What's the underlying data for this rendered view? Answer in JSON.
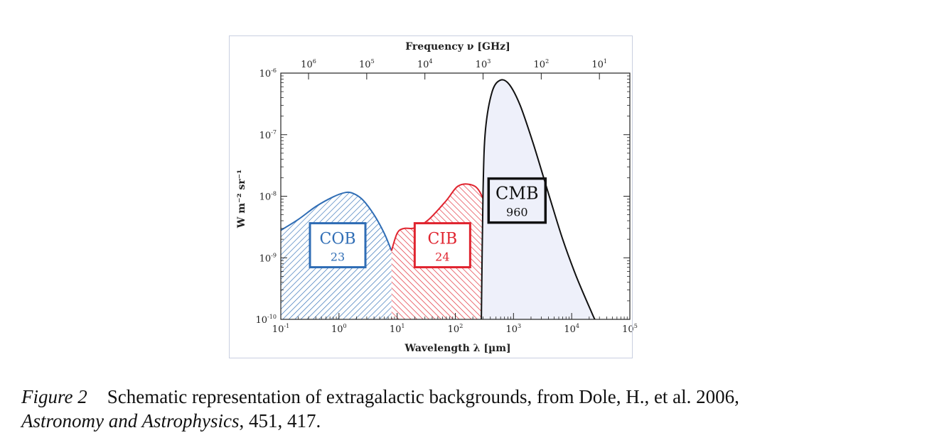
{
  "chart_data": {
    "type": "area",
    "top_axis_label": "Frequency ν [GHz]",
    "xlabel": "Wavelength λ [µm]",
    "ylabel": "W m⁻² sr⁻¹",
    "x_scale": "log",
    "y_scale": "log",
    "xlim": [
      0.1,
      100000
    ],
    "ylim": [
      1e-10,
      1e-06
    ],
    "x_ticks": [
      {
        "value": 0.1,
        "base": "10",
        "exp": "-1"
      },
      {
        "value": 1,
        "base": "10",
        "exp": "0"
      },
      {
        "value": 10,
        "base": "10",
        "exp": "1"
      },
      {
        "value": 100,
        "base": "10",
        "exp": "2"
      },
      {
        "value": 1000,
        "base": "10",
        "exp": "3"
      },
      {
        "value": 10000,
        "base": "10",
        "exp": "4"
      },
      {
        "value": 100000,
        "base": "10",
        "exp": "5"
      }
    ],
    "y_ticks": [
      {
        "value": 1e-06,
        "base": "10",
        "exp": "-6"
      },
      {
        "value": 1e-07,
        "base": "10",
        "exp": "-7"
      },
      {
        "value": 1e-08,
        "base": "10",
        "exp": "-8"
      },
      {
        "value": 1e-09,
        "base": "10",
        "exp": "-9"
      },
      {
        "value": 1e-10,
        "base": "10",
        "exp": "-10"
      }
    ],
    "top_ticks": [
      {
        "value": 1000000,
        "base": "10",
        "exp": "6"
      },
      {
        "value": 100000,
        "base": "10",
        "exp": "5"
      },
      {
        "value": 10000,
        "base": "10",
        "exp": "4"
      },
      {
        "value": 1000,
        "base": "10",
        "exp": "3"
      },
      {
        "value": 100,
        "base": "10",
        "exp": "2"
      },
      {
        "value": 10,
        "base": "10",
        "exp": "1"
      }
    ],
    "series": [
      {
        "name": "COB",
        "value_label": "23",
        "color": "#2f6db5",
        "fill": "hatch",
        "label_pos": [
          0.95,
          1.6e-09
        ],
        "points": [
          [
            0.1,
            2.8e-09
          ],
          [
            0.2,
            4.2e-09
          ],
          [
            0.4,
            6.8e-09
          ],
          [
            0.8,
            9.8e-09
          ],
          [
            1.3,
            1.15e-08
          ],
          [
            1.8,
            1.1e-08
          ],
          [
            2.6,
            8.6e-09
          ],
          [
            4,
            5e-09
          ],
          [
            6,
            2.5e-09
          ],
          [
            8,
            1.3e-09
          ]
        ]
      },
      {
        "name": "CIB",
        "value_label": "24",
        "color": "#e0242f",
        "fill": "hatch",
        "label_pos": [
          60,
          1.6e-09
        ],
        "points": [
          [
            8,
            1.3e-09
          ],
          [
            10,
            2.5e-09
          ],
          [
            13,
            3e-09
          ],
          [
            20,
            3.05e-09
          ],
          [
            35,
            4.2e-09
          ],
          [
            70,
            8.5e-09
          ],
          [
            110,
            1.45e-08
          ],
          [
            180,
            1.55e-08
          ],
          [
            260,
            1.2e-08
          ],
          [
            380,
            5e-09
          ],
          [
            500,
            2.2e-09
          ],
          [
            700,
            7e-10
          ],
          [
            1000,
            2.5e-10
          ],
          [
            1300,
            1e-10
          ]
        ]
      },
      {
        "name": "CMB",
        "value_label": "960",
        "color": "#111111",
        "fill": "solid",
        "fill_color": "#eef0fa",
        "label_pos": [
          1150,
          8.5e-09
        ],
        "points": [
          [
            280,
            1e-10
          ],
          [
            300,
            1.2e-08
          ],
          [
            330,
            1.2e-07
          ],
          [
            430,
            5e-07
          ],
          [
            600,
            7.7e-07
          ],
          [
            850,
            6.5e-07
          ],
          [
            1300,
            3e-07
          ],
          [
            2200,
            7e-08
          ],
          [
            4000,
            1.1e-08
          ],
          [
            7000,
            2e-09
          ],
          [
            12000,
            5e-10
          ],
          [
            22000,
            1.3e-10
          ],
          [
            25000,
            1e-10
          ]
        ]
      }
    ]
  },
  "caption": {
    "label": "Figure 2",
    "text": "Schematic representation of extragalactic backgrounds, from Dole, H., et al. 2006,",
    "journal": "Astronomy and Astrophysics",
    "tail": ", 451, 417."
  }
}
